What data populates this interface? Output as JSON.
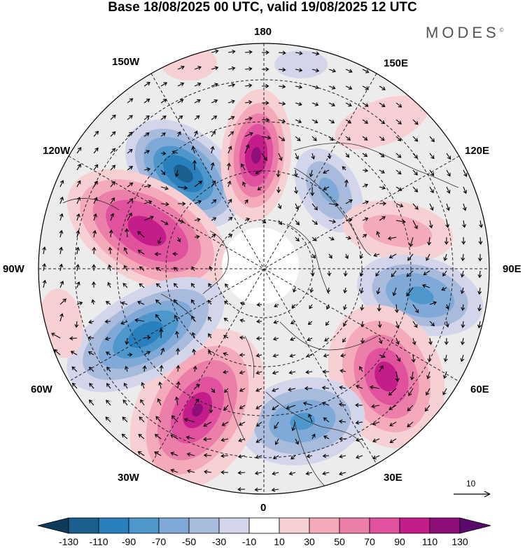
{
  "title": "Base 18/08/2025 00 UTC, valid 19/08/2025 12 UTC",
  "brand": "MODES",
  "brand_mark": "©",
  "longitude_labels": {
    "n180": "180",
    "w150": "150W",
    "e150": "150E",
    "w120": "120W",
    "e120": "120E",
    "w90": "90W",
    "e90": "90E",
    "w60": "60W",
    "e60": "60E",
    "w30": "30W",
    "e30": "30E",
    "zero": "0"
  },
  "reference_vector": {
    "label": "10"
  },
  "colorbar": {
    "ticks": [
      "-130",
      "-110",
      "-90",
      "-70",
      "-50",
      "-30",
      "-10",
      "10",
      "30",
      "50",
      "70",
      "90",
      "110",
      "130"
    ],
    "colors": [
      "#0e3b5a",
      "#1a5f8e",
      "#2a7fbd",
      "#4e97cc",
      "#7fa9d6",
      "#a8bbdd",
      "#d3d6ea",
      "#ffffff",
      "#f7d0d4",
      "#f4aab9",
      "#ec7fa9",
      "#e0529d",
      "#c41d8a",
      "#8f0f7a",
      "#5a0a6d"
    ]
  },
  "anomalies": [
    {
      "name": "anomaly-negative-north-pacific",
      "sign": "negative",
      "peak": -110
    },
    {
      "name": "anomaly-positive-bering",
      "sign": "positive",
      "peak": 110
    },
    {
      "name": "anomaly-positive-northwest-america",
      "sign": "positive",
      "peak": 110
    },
    {
      "name": "anomaly-negative-east-siberia",
      "sign": "negative",
      "peak": -50
    },
    {
      "name": "anomaly-positive-central-siberia",
      "sign": "positive",
      "peak": 50
    },
    {
      "name": "anomaly-negative-west-siberia",
      "sign": "negative",
      "peak": -70
    },
    {
      "name": "anomaly-positive-urals",
      "sign": "positive",
      "peak": 110
    },
    {
      "name": "anomaly-negative-europe",
      "sign": "negative",
      "peak": -70
    },
    {
      "name": "anomaly-positive-north-atlantic",
      "sign": "positive",
      "peak": 110
    },
    {
      "name": "anomaly-negative-labrador",
      "sign": "negative",
      "peak": -110
    },
    {
      "name": "anomaly-positive-hudson",
      "sign": "positive",
      "peak": 30
    }
  ]
}
